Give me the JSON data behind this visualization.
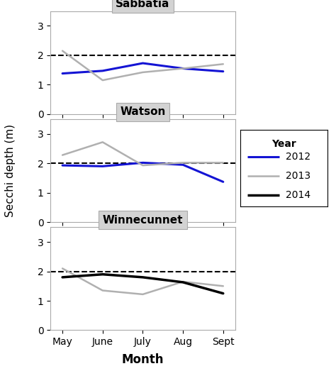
{
  "months": [
    "May",
    "June",
    "July",
    "Aug",
    "Sept"
  ],
  "sabbatia_2012_x": [
    0,
    1,
    2,
    3,
    4
  ],
  "sabbatia_2012_y": [
    1.38,
    1.47,
    1.73,
    1.55,
    1.45
  ],
  "sabbatia_2013_x": [
    0,
    1,
    2,
    3,
    4
  ],
  "sabbatia_2013_y": [
    2.15,
    1.15,
    1.42,
    1.55,
    1.7
  ],
  "watson_2012_x": [
    0,
    1,
    2,
    3,
    4
  ],
  "watson_2012_y": [
    1.93,
    1.9,
    2.02,
    1.95,
    1.37
  ],
  "watson_2013_x": [
    0,
    1,
    2,
    3,
    4
  ],
  "watson_2013_y": [
    2.28,
    2.72,
    1.93,
    2.02,
    2.02
  ],
  "winnecunnet_2013_x": [
    0,
    1,
    2,
    3,
    4
  ],
  "winnecunnet_2013_y": [
    2.1,
    1.35,
    1.22,
    1.65,
    1.5
  ],
  "winnecunnet_2014_x": [
    0,
    1,
    2,
    3,
    4
  ],
  "winnecunnet_2014_y": [
    1.8,
    1.9,
    1.8,
    1.63,
    1.25
  ],
  "colors": {
    "2012": "#1414d4",
    "2013": "#b0b0b0",
    "2014": "#000000"
  },
  "linewidths": {
    "2012": 2.2,
    "2013": 1.8,
    "2014": 2.5
  },
  "reference_line": 2.0,
  "ylim": [
    0,
    3.5
  ],
  "yticks": [
    0,
    1,
    2,
    3
  ],
  "xlabel": "Month",
  "ylabel": "Secchi depth (m)",
  "legend_title": "Year",
  "legend_labels": [
    "2012",
    "2013",
    "2014"
  ],
  "panel_titles": [
    "Sabbatia",
    "Watson",
    "Winnecunnet"
  ],
  "title_bg_color": "#d3d3d3",
  "plot_bg_color": "#ffffff",
  "title_fontsize": 11,
  "label_fontsize": 11,
  "tick_fontsize": 10,
  "legend_fontsize": 10
}
